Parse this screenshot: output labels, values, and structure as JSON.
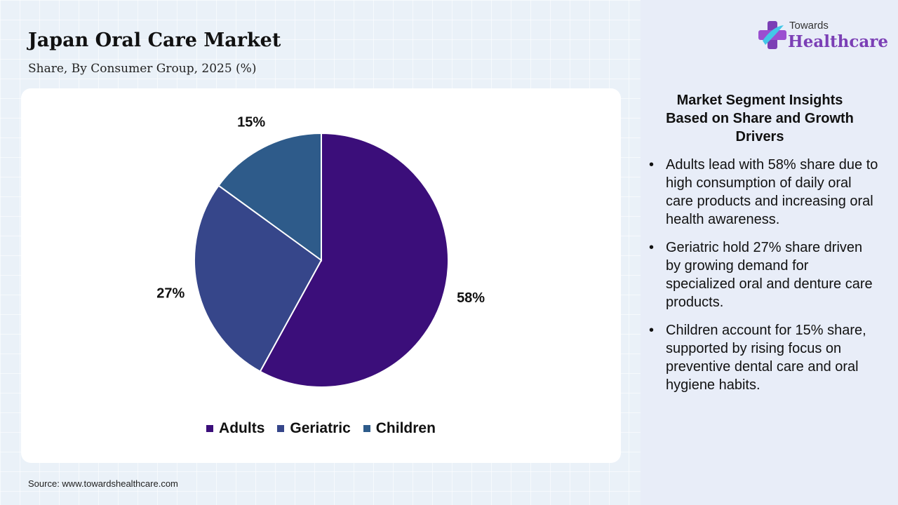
{
  "header": {
    "title": "Japan Oral Care Market",
    "subtitle": "Share, By Consumer Group, 2025 (%)"
  },
  "chart_data": {
    "type": "pie",
    "categories": [
      "Adults",
      "Geriatric",
      "Children"
    ],
    "values": [
      58,
      27,
      15
    ],
    "labels": [
      "58%",
      "27%",
      "15%"
    ],
    "colors": [
      "#3b0e7a",
      "#36468a",
      "#2e5b8a"
    ],
    "legend_position": "bottom"
  },
  "source": "Source: www.towardshealthcare.com",
  "logo": {
    "line1": "Towards",
    "line2": "Healthcare"
  },
  "insights": {
    "title": "Market Segment Insights\nBased on Share and Growth\nDrivers",
    "bullets": [
      "Adults lead with 58% share due to high consumption of daily oral care products and increasing oral health awareness.",
      "Geriatric hold 27% share driven by growing demand for specialized oral and denture care products.",
      "Children account for 15% share, supported by rising focus on preventive dental care and oral hygiene habits."
    ]
  }
}
